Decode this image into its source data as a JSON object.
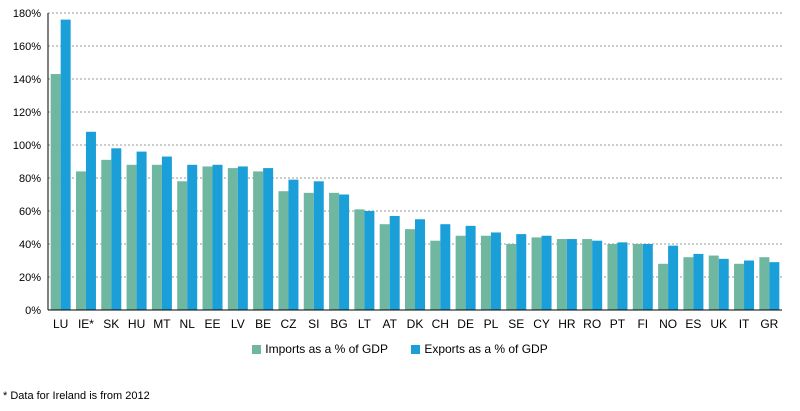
{
  "chart_data": {
    "type": "bar",
    "categories": [
      "LU",
      "IE*",
      "SK",
      "HU",
      "MT",
      "NL",
      "EE",
      "LV",
      "BE",
      "CZ",
      "SI",
      "BG",
      "LT",
      "AT",
      "DK",
      "CH",
      "DE",
      "PL",
      "SE",
      "CY",
      "HR",
      "RO",
      "PT",
      "FI",
      "NO",
      "ES",
      "UK",
      "IT",
      "GR"
    ],
    "series": [
      {
        "name": "Imports as a % of GDP",
        "color": "#6fb7a1",
        "values": [
          143,
          84,
          91,
          88,
          88,
          78,
          87,
          86,
          84,
          72,
          71,
          71,
          61,
          52,
          49,
          42,
          45,
          45,
          40,
          44,
          43,
          43,
          40,
          40,
          28,
          32,
          33,
          28,
          32
        ]
      },
      {
        "name": "Exports as a % of GDP",
        "color": "#1b9fd8",
        "values": [
          176,
          108,
          98,
          96,
          93,
          88,
          88,
          87,
          86,
          79,
          78,
          70,
          60,
          57,
          55,
          52,
          51,
          47,
          46,
          45,
          43,
          42,
          41,
          40,
          39,
          34,
          31,
          30,
          29
        ]
      }
    ],
    "ylim": [
      0,
      180
    ],
    "yticks": [
      "0%",
      "20%",
      "40%",
      "60%",
      "80%",
      "100%",
      "120%",
      "140%",
      "160%",
      "180%"
    ],
    "grid": true,
    "legend_position": "bottom"
  },
  "footnote": "* Data for Ireland is from 2012"
}
